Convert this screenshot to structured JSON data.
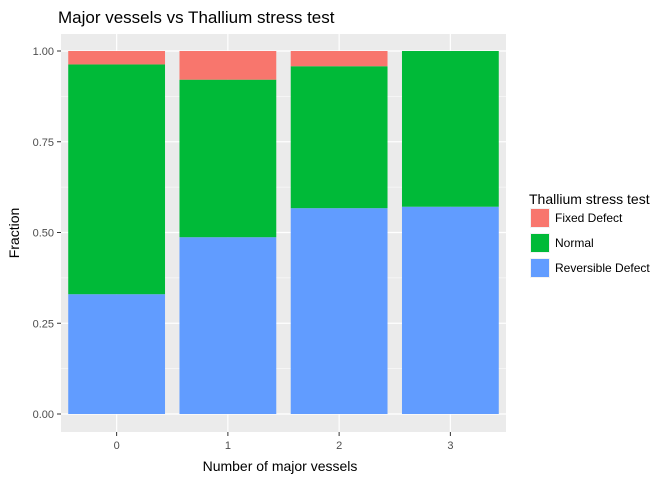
{
  "chart_data": {
    "type": "bar",
    "stacked": true,
    "title": "Major vessels vs Thallium stress test",
    "xlabel": "Number of major vessels",
    "ylabel": "Fraction",
    "categories": [
      "0",
      "1",
      "2",
      "3"
    ],
    "ylim": [
      0,
      1
    ],
    "yticks": [
      "0.00",
      "0.25",
      "0.50",
      "0.75",
      "1.00"
    ],
    "grid": true,
    "legend_title": "Thallium stress test",
    "legend_position": "right",
    "series": [
      {
        "name": "Reversible Defect",
        "color": "#619CFF",
        "values": [
          0.33,
          0.487,
          0.567,
          0.571
        ]
      },
      {
        "name": "Normal",
        "color": "#00BA38",
        "values": [
          0.633,
          0.434,
          0.391,
          0.429
        ]
      },
      {
        "name": "Fixed Defect",
        "color": "#F8766D",
        "values": [
          0.037,
          0.079,
          0.042,
          0.0
        ]
      }
    ],
    "legend_order": [
      "Fixed Defect",
      "Normal",
      "Reversible Defect"
    ]
  }
}
